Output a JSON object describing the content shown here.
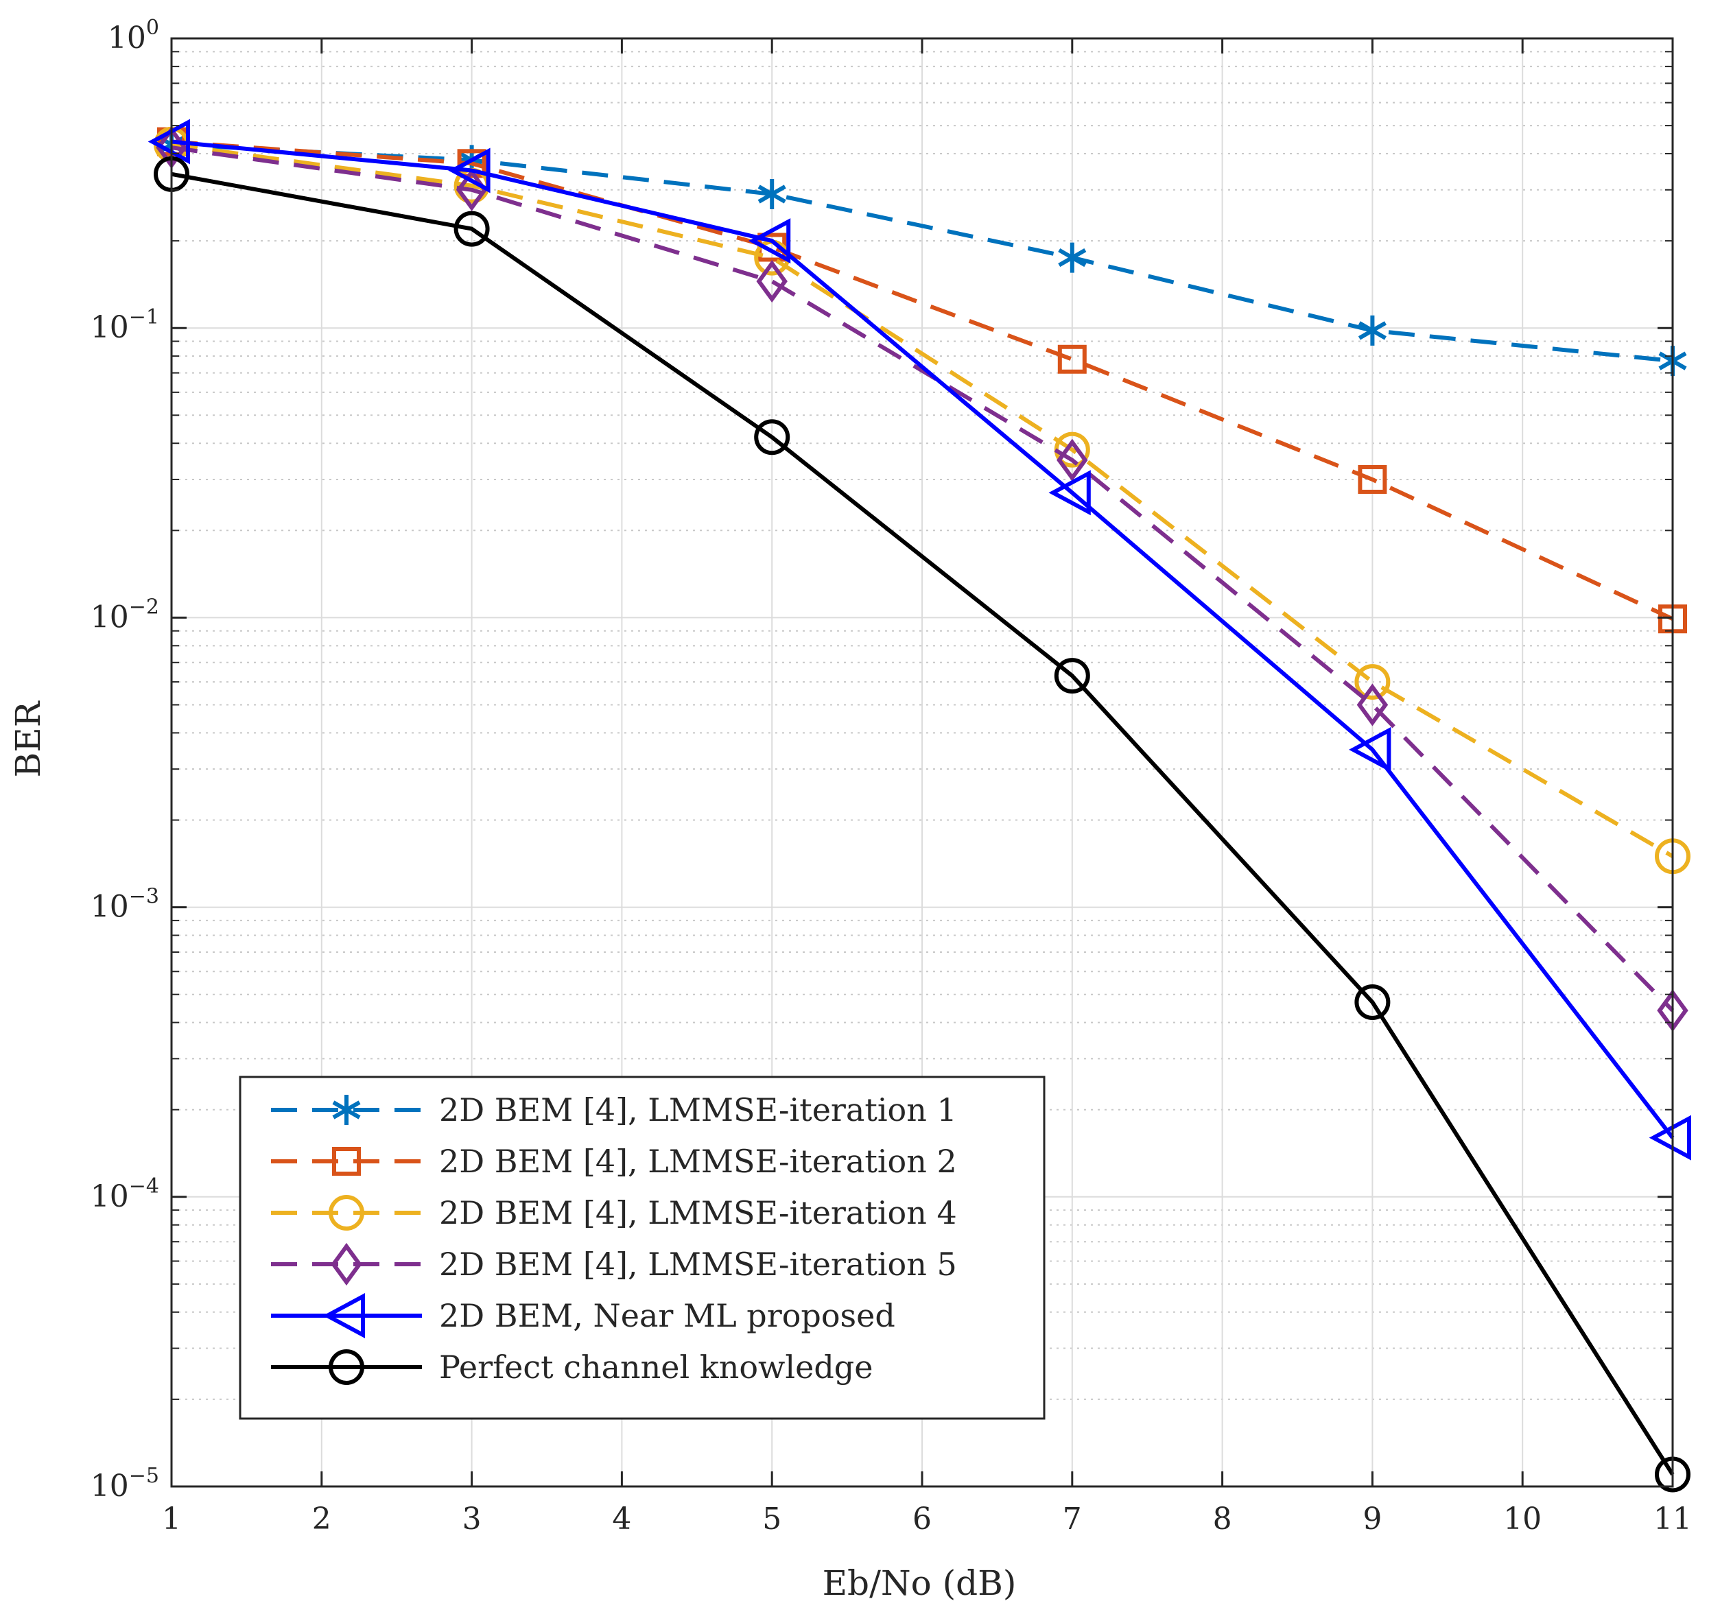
{
  "chart_data": {
    "type": "line",
    "title": "",
    "xlabel": "Eb/No (dB)",
    "ylabel": "BER",
    "yscale": "log",
    "xlim": [
      1,
      11
    ],
    "ylim": [
      1e-05,
      1
    ],
    "xticks": [
      1,
      2,
      3,
      4,
      5,
      6,
      7,
      8,
      9,
      10,
      11
    ],
    "xtick_labels": [
      "1",
      "2",
      "3",
      "4",
      "5",
      "6",
      "7",
      "8",
      "9",
      "10",
      "11"
    ],
    "yticks": [
      {
        "value": 1,
        "base": "10",
        "exp": "0"
      },
      {
        "value": 0.1,
        "base": "10",
        "exp": "−1"
      },
      {
        "value": 0.01,
        "base": "10",
        "exp": "−2"
      },
      {
        "value": 0.001,
        "base": "10",
        "exp": "−3"
      },
      {
        "value": 0.0001,
        "base": "10",
        "exp": "−4"
      },
      {
        "value": 1e-05,
        "base": "10",
        "exp": "−5"
      }
    ],
    "grid": true,
    "legend_position": "bottom-left",
    "x": [
      1,
      3,
      5,
      7,
      9,
      11
    ],
    "series": [
      {
        "name": "2D BEM [4], LMMSE-iteration 1",
        "color": "#0072BD",
        "dash": "dashed",
        "marker": "asterisk",
        "values": [
          0.43,
          0.38,
          0.29,
          0.175,
          0.098,
          0.077
        ]
      },
      {
        "name": "2D BEM [4], LMMSE-iteration 2",
        "color": "#D95319",
        "dash": "dashed",
        "marker": "square",
        "values": [
          0.44,
          0.37,
          0.19,
          0.078,
          0.03,
          0.0099
        ]
      },
      {
        "name": "2D BEM [4], LMMSE-iteration 4",
        "color": "#EDB120",
        "dash": "dashed",
        "marker": "circle",
        "values": [
          0.43,
          0.31,
          0.175,
          0.038,
          0.006,
          0.0015
        ]
      },
      {
        "name": "2D BEM [4], LMMSE-iteration 5",
        "color": "#7E2F8E",
        "dash": "dashed",
        "marker": "diamond",
        "values": [
          0.42,
          0.3,
          0.145,
          0.035,
          0.005,
          0.00044
        ]
      },
      {
        "name": "2D BEM, Near ML proposed",
        "color": "#0000FF",
        "dash": "solid",
        "marker": "triangle-left",
        "values": [
          0.44,
          0.35,
          0.2,
          0.027,
          0.0035,
          0.00016
        ]
      },
      {
        "name": "Perfect channel knowledge",
        "color": "#000000",
        "dash": "solid",
        "marker": "circle",
        "values": [
          0.34,
          0.22,
          0.042,
          0.0063,
          0.00047,
          1.1e-05
        ]
      }
    ]
  }
}
